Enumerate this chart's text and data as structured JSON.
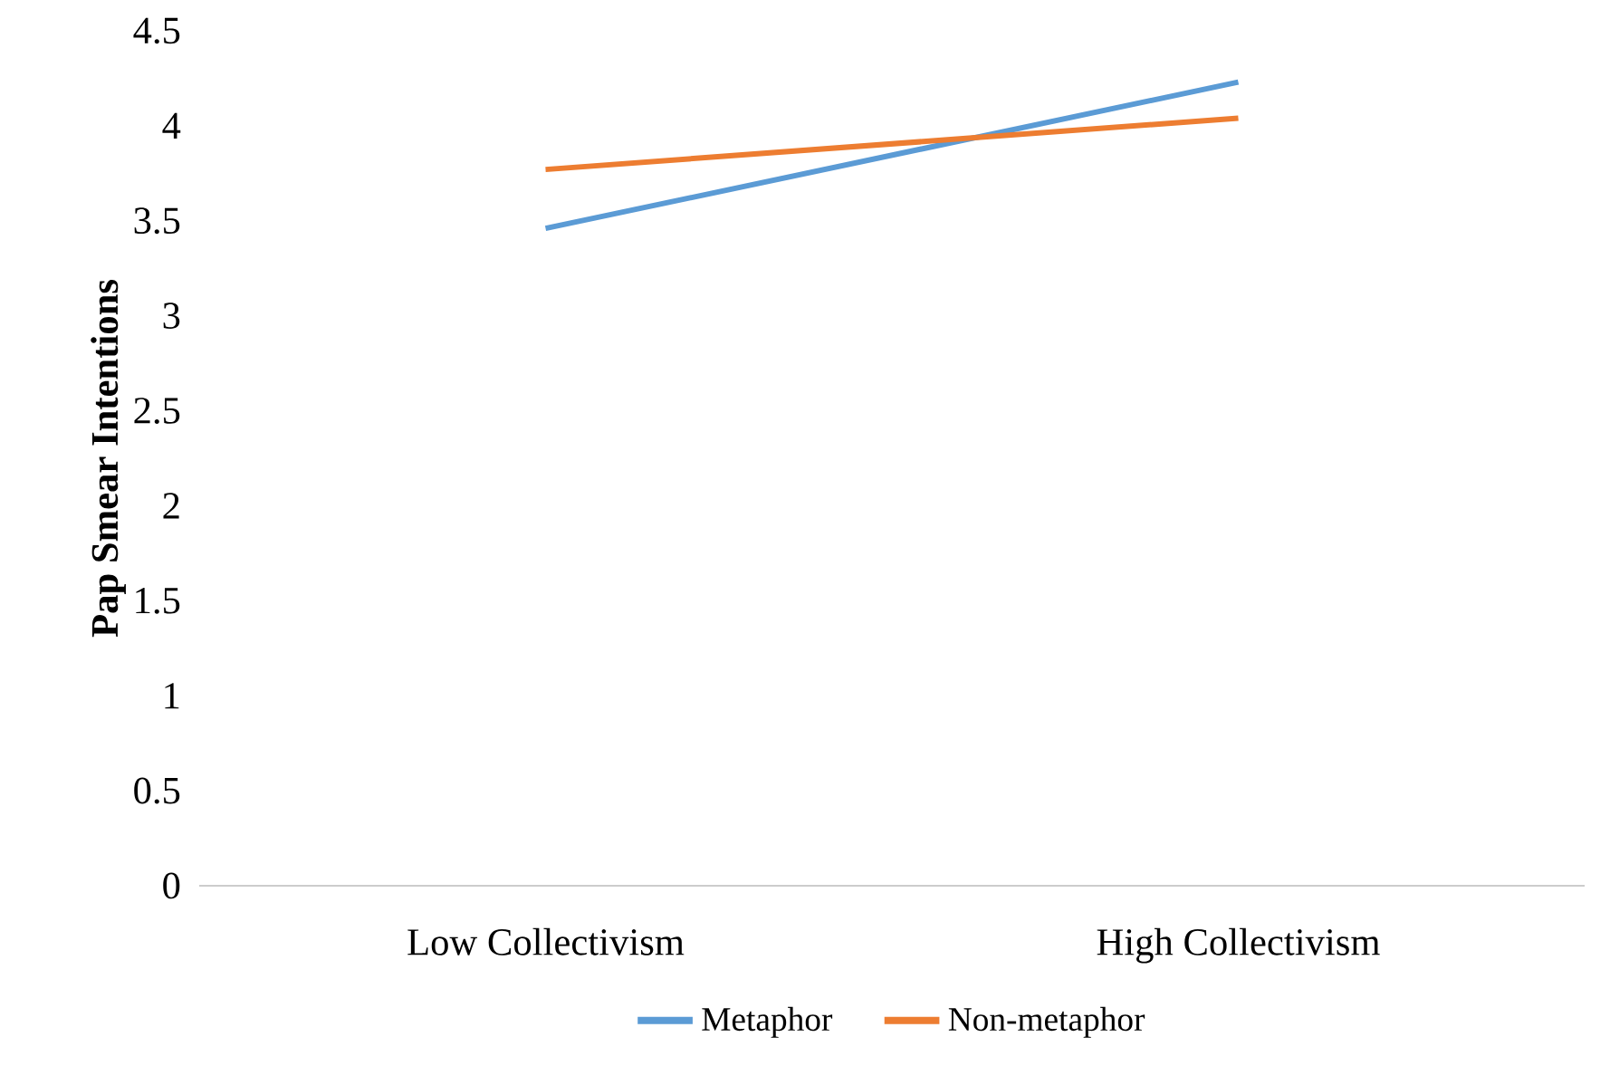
{
  "chart_data": {
    "type": "line",
    "ylabel": "Pap Smear Intentions",
    "categories": [
      "Low Collectivism",
      "High Collectivism"
    ],
    "series": [
      {
        "name": "Metaphor",
        "color": "#5b9bd5",
        "values": [
          3.46,
          4.23
        ]
      },
      {
        "name": "Non-metaphor",
        "color": "#ed7d31",
        "values": [
          3.77,
          4.04
        ]
      }
    ],
    "ylim": [
      0,
      4.5
    ],
    "yticks": [
      0,
      0.5,
      1,
      1.5,
      2,
      2.5,
      3,
      3.5,
      4,
      4.5
    ],
    "grid": false,
    "legend": "bottom",
    "marker": "none",
    "line_style": "solid"
  }
}
